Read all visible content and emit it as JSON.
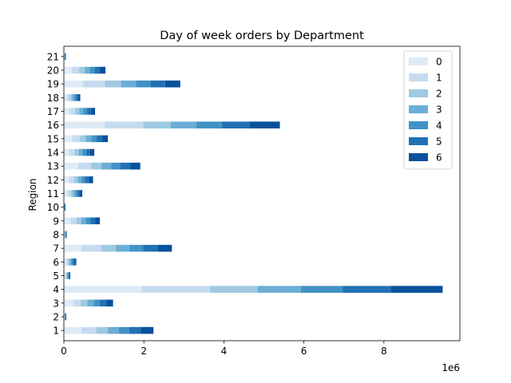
{
  "chart_data": {
    "type": "bar",
    "orientation": "horizontal",
    "stacked": true,
    "title": "Day of week orders by Department",
    "xlabel": "",
    "ylabel": "Region",
    "x_scale_label": "1e6",
    "xlim": [
      0,
      9.9
    ],
    "x_ticks": [
      0,
      2,
      4,
      6,
      8
    ],
    "grid": false,
    "legend_position": "top-right",
    "categories": [
      "1",
      "2",
      "3",
      "4",
      "5",
      "6",
      "7",
      "8",
      "9",
      "10",
      "11",
      "12",
      "13",
      "14",
      "15",
      "16",
      "17",
      "18",
      "19",
      "20",
      "21"
    ],
    "series": [
      {
        "name": "0",
        "color": "#deebf7",
        "values": [
          0.44,
          0.008,
          0.23,
          1.95,
          0.03,
          0.06,
          0.44,
          0.01,
          0.17,
          0.005,
          0.09,
          0.13,
          0.36,
          0.14,
          0.21,
          1.02,
          0.15,
          0.08,
          0.48,
          0.2,
          0.007
        ]
      },
      {
        "name": "1",
        "color": "#c6dbef",
        "values": [
          0.37,
          0.008,
          0.19,
          1.7,
          0.03,
          0.05,
          0.5,
          0.01,
          0.15,
          0.005,
          0.08,
          0.12,
          0.32,
          0.13,
          0.19,
          0.96,
          0.13,
          0.07,
          0.55,
          0.18,
          0.007
        ]
      },
      {
        "name": "2",
        "color": "#9ecae1",
        "values": [
          0.29,
          0.008,
          0.17,
          1.2,
          0.02,
          0.04,
          0.36,
          0.01,
          0.12,
          0.005,
          0.06,
          0.1,
          0.26,
          0.1,
          0.15,
          0.69,
          0.11,
          0.06,
          0.4,
          0.14,
          0.006
        ]
      },
      {
        "name": "3",
        "color": "#6baed6",
        "values": [
          0.27,
          0.008,
          0.16,
          1.07,
          0.02,
          0.04,
          0.34,
          0.01,
          0.11,
          0.005,
          0.06,
          0.09,
          0.24,
          0.1,
          0.14,
          0.64,
          0.1,
          0.05,
          0.37,
          0.13,
          0.006
        ]
      },
      {
        "name": "4",
        "color": "#4292c6",
        "values": [
          0.26,
          0.008,
          0.15,
          1.05,
          0.02,
          0.04,
          0.34,
          0.01,
          0.11,
          0.005,
          0.05,
          0.09,
          0.23,
          0.09,
          0.13,
          0.64,
          0.09,
          0.05,
          0.36,
          0.12,
          0.006
        ]
      },
      {
        "name": "5",
        "color": "#2171b5",
        "values": [
          0.29,
          0.008,
          0.16,
          1.2,
          0.02,
          0.04,
          0.36,
          0.01,
          0.12,
          0.005,
          0.06,
          0.1,
          0.25,
          0.1,
          0.14,
          0.7,
          0.1,
          0.05,
          0.37,
          0.13,
          0.006
        ]
      },
      {
        "name": "6",
        "color": "#08519c",
        "values": [
          0.32,
          0.008,
          0.17,
          1.3,
          0.02,
          0.04,
          0.36,
          0.01,
          0.12,
          0.005,
          0.06,
          0.1,
          0.25,
          0.1,
          0.14,
          0.75,
          0.1,
          0.05,
          0.38,
          0.14,
          0.006
        ]
      }
    ]
  }
}
